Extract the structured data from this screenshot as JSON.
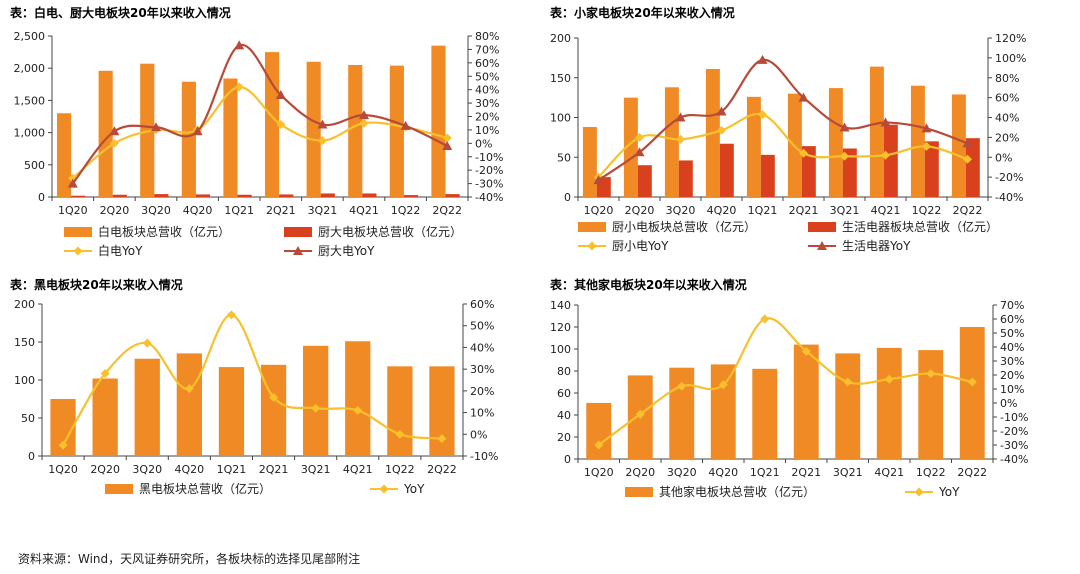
{
  "colors": {
    "orange": "#F08A24",
    "red": "#D8401E",
    "yellow": "#F7C02C",
    "darkred": "#B84A3A"
  },
  "footer": {
    "text": "资料来源：Wind，天风证券研究所，各板块标的选择见尾部附注"
  },
  "chart_data": [
    {
      "type": "bar",
      "title": "表：白电、厨大电板块20年以来收入情况",
      "categories": [
        "1Q20",
        "2Q20",
        "3Q20",
        "4Q20",
        "1Q21",
        "2Q21",
        "3Q21",
        "4Q21",
        "1Q22",
        "2Q22"
      ],
      "ylim": [
        0,
        2500
      ],
      "yticks": [
        0,
        500,
        1000,
        1500,
        2000,
        2500
      ],
      "ytick_labels": [
        "0",
        "500",
        "1,000",
        "1,500",
        "2,000",
        "2,500"
      ],
      "y2lim": [
        -40,
        80
      ],
      "y2ticks": [
        -40,
        -30,
        -20,
        -10,
        0,
        10,
        20,
        30,
        40,
        50,
        60,
        70,
        80
      ],
      "y2tick_labels": [
        "-40%",
        "-30%",
        "-20%",
        "-10%",
        "0%",
        "10%",
        "20%",
        "30%",
        "40%",
        "50%",
        "60%",
        "70%",
        "80%"
      ],
      "series": [
        {
          "name": "白电板块总营收（亿元）",
          "kind": "bar",
          "color": "#F08A24",
          "values": [
            1300,
            1960,
            2070,
            1790,
            1840,
            2250,
            2100,
            2050,
            2040,
            2350
          ]
        },
        {
          "name": "厨大电板块总营收（亿元）",
          "kind": "bar",
          "color": "#D8401E",
          "values": [
            20,
            35,
            45,
            40,
            35,
            40,
            55,
            55,
            30,
            45
          ]
        },
        {
          "name": "白电YoY",
          "kind": "line",
          "axis": "y2",
          "color": "#F7C02C",
          "marker": "diamond",
          "values": [
            -26,
            0,
            10,
            10,
            42,
            14,
            2,
            15,
            12,
            4
          ]
        },
        {
          "name": "厨大电YoY",
          "kind": "line",
          "axis": "y2",
          "color": "#B84A3A",
          "marker": "triangle",
          "values": [
            -30,
            9,
            12,
            9,
            73,
            36,
            14,
            21,
            13,
            -2
          ]
        }
      ]
    },
    {
      "type": "bar",
      "title": "表：小家电板块20年以来收入情况",
      "categories": [
        "1Q20",
        "2Q20",
        "3Q20",
        "4Q20",
        "1Q21",
        "2Q21",
        "3Q21",
        "4Q21",
        "1Q22",
        "2Q22"
      ],
      "ylim": [
        0,
        200
      ],
      "yticks": [
        0,
        50,
        100,
        150,
        200
      ],
      "ytick_labels": [
        "0",
        "50",
        "100",
        "150",
        "200"
      ],
      "y2lim": [
        -40,
        120
      ],
      "y2ticks": [
        -40,
        -20,
        0,
        20,
        40,
        60,
        80,
        100,
        120
      ],
      "y2tick_labels": [
        "-40%",
        "-20%",
        "0%",
        "20%",
        "40%",
        "60%",
        "80%",
        "100%",
        "120%"
      ],
      "series": [
        {
          "name": "厨小电板块总营收（亿元）",
          "kind": "bar",
          "color": "#F08A24",
          "values": [
            88,
            125,
            138,
            161,
            126,
            130,
            137,
            164,
            140,
            129
          ]
        },
        {
          "name": "生活电器板块总营收（亿元）",
          "kind": "bar",
          "color": "#D8401E",
          "values": [
            25,
            40,
            46,
            67,
            53,
            64,
            61,
            91,
            70,
            74
          ]
        },
        {
          "name": "厨小电YoY",
          "kind": "line",
          "axis": "y2",
          "color": "#F7C02C",
          "marker": "diamond",
          "values": [
            -20,
            20,
            18,
            27,
            43,
            4,
            1,
            2,
            11,
            -2
          ]
        },
        {
          "name": "生活电器YoY",
          "kind": "line",
          "axis": "y2",
          "color": "#B84A3A",
          "marker": "triangle",
          "values": [
            -23,
            5,
            40,
            46,
            98,
            60,
            30,
            35,
            29,
            14
          ]
        }
      ]
    },
    {
      "type": "bar",
      "title": "表：黑电板块20年以来收入情况",
      "categories": [
        "1Q20",
        "2Q20",
        "3Q20",
        "4Q20",
        "1Q21",
        "2Q21",
        "3Q21",
        "4Q21",
        "1Q22",
        "2Q22"
      ],
      "ylim": [
        0,
        200
      ],
      "yticks": [
        0,
        50,
        100,
        150,
        200
      ],
      "ytick_labels": [
        "0",
        "50",
        "100",
        "150",
        "200"
      ],
      "y2lim": [
        -10,
        60
      ],
      "y2ticks": [
        -10,
        0,
        10,
        20,
        30,
        40,
        50,
        60
      ],
      "y2tick_labels": [
        "-10%",
        "0%",
        "10%",
        "20%",
        "30%",
        "40%",
        "50%",
        "60%"
      ],
      "series": [
        {
          "name": "黑电板块总营收（亿元）",
          "kind": "bar",
          "color": "#F08A24",
          "values": [
            75,
            102,
            128,
            135,
            117,
            120,
            145,
            151,
            118,
            118
          ]
        },
        {
          "name": "YoY",
          "kind": "line",
          "axis": "y2",
          "color": "#F7C02C",
          "marker": "diamond",
          "values": [
            -5,
            28,
            42,
            21,
            55,
            17,
            12,
            11,
            0,
            -2
          ]
        }
      ]
    },
    {
      "type": "bar",
      "title": "表：其他家电板块20年以来收入情况",
      "categories": [
        "1Q20",
        "2Q20",
        "3Q20",
        "4Q20",
        "1Q21",
        "2Q21",
        "3Q21",
        "4Q21",
        "1Q22",
        "2Q22"
      ],
      "ylim": [
        0,
        140
      ],
      "yticks": [
        0,
        20,
        40,
        60,
        80,
        100,
        120,
        140
      ],
      "ytick_labels": [
        "0",
        "20",
        "40",
        "60",
        "80",
        "100",
        "120",
        "140"
      ],
      "y2lim": [
        -40,
        70
      ],
      "y2ticks": [
        -40,
        -30,
        -20,
        -10,
        0,
        10,
        20,
        30,
        40,
        50,
        60,
        70
      ],
      "y2tick_labels": [
        "-40%",
        "-30%",
        "-20%",
        "-10%",
        "0%",
        "10%",
        "20%",
        "30%",
        "40%",
        "50%",
        "60%",
        "70%"
      ],
      "series": [
        {
          "name": "其他家电板块总营收（亿元）",
          "kind": "bar",
          "color": "#F08A24",
          "values": [
            51,
            76,
            83,
            86,
            82,
            104,
            96,
            101,
            99,
            120
          ]
        },
        {
          "name": "YoY",
          "kind": "line",
          "axis": "y2",
          "color": "#F7C02C",
          "marker": "diamond",
          "values": [
            -30,
            -8,
            12,
            13,
            60,
            37,
            15,
            17,
            21,
            15
          ]
        }
      ]
    }
  ]
}
